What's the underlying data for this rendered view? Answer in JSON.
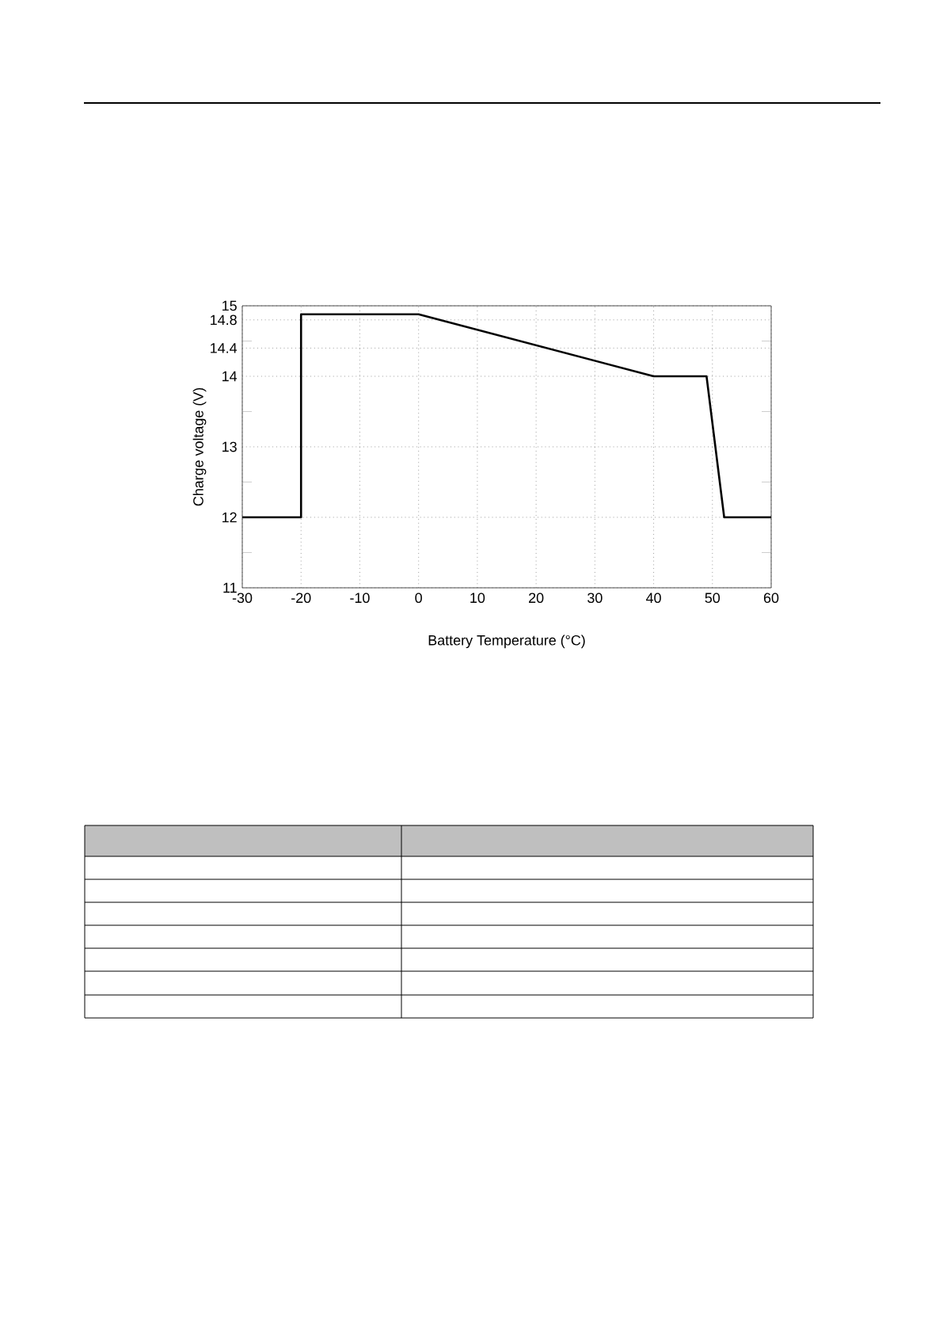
{
  "chart_data": {
    "type": "line",
    "xlabel": "Battery Temperature (°C)",
    "ylabel": "Charge voltage (V)",
    "x": [
      -30,
      -20,
      -20,
      0,
      40,
      49,
      52,
      60
    ],
    "series": [
      {
        "color": "#000000",
        "values": [
          12,
          12,
          14.88,
          14.88,
          14,
          14,
          12,
          12
        ]
      }
    ],
    "xlim": [
      -30,
      60
    ],
    "xticks": [
      -30,
      -20,
      -10,
      0,
      10,
      20,
      30,
      40,
      50,
      60
    ],
    "ylim": [
      11,
      15
    ],
    "yticks": [
      11,
      {
        "value": 11.5,
        "label": null
      },
      12,
      {
        "value": 12.5,
        "label": null
      },
      13,
      {
        "value": 13.5,
        "label": null
      },
      14,
      14.4,
      {
        "value": 14.5,
        "label": null
      },
      14.8,
      15
    ],
    "grid": true,
    "marker": "none",
    "line_style": "solid"
  }
}
